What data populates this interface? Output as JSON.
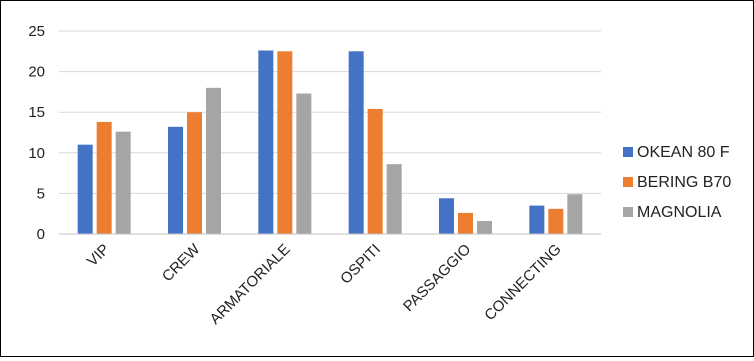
{
  "chart_data": {
    "type": "bar",
    "title": "",
    "xlabel": "",
    "ylabel": "",
    "ylim": [
      0,
      25
    ],
    "yticks": [
      0,
      5,
      10,
      15,
      20,
      25
    ],
    "grid": true,
    "legend_position": "right",
    "categories": [
      "VIP",
      "CREW",
      "ARMATORIALE",
      "OSPITI",
      "PASSAGGIO",
      "CONNECTING"
    ],
    "series": [
      {
        "name": "OKEAN 80 F",
        "color": "#4472C4",
        "values": [
          11.0,
          13.2,
          22.6,
          22.5,
          4.4,
          3.5
        ]
      },
      {
        "name": "BERING B70",
        "color": "#ED7D31",
        "values": [
          13.8,
          15.0,
          22.5,
          15.4,
          2.6,
          3.1
        ]
      },
      {
        "name": "MAGNOLIA",
        "color": "#A5A5A5",
        "values": [
          12.6,
          18.0,
          17.3,
          8.6,
          1.6,
          4.9
        ]
      }
    ]
  }
}
